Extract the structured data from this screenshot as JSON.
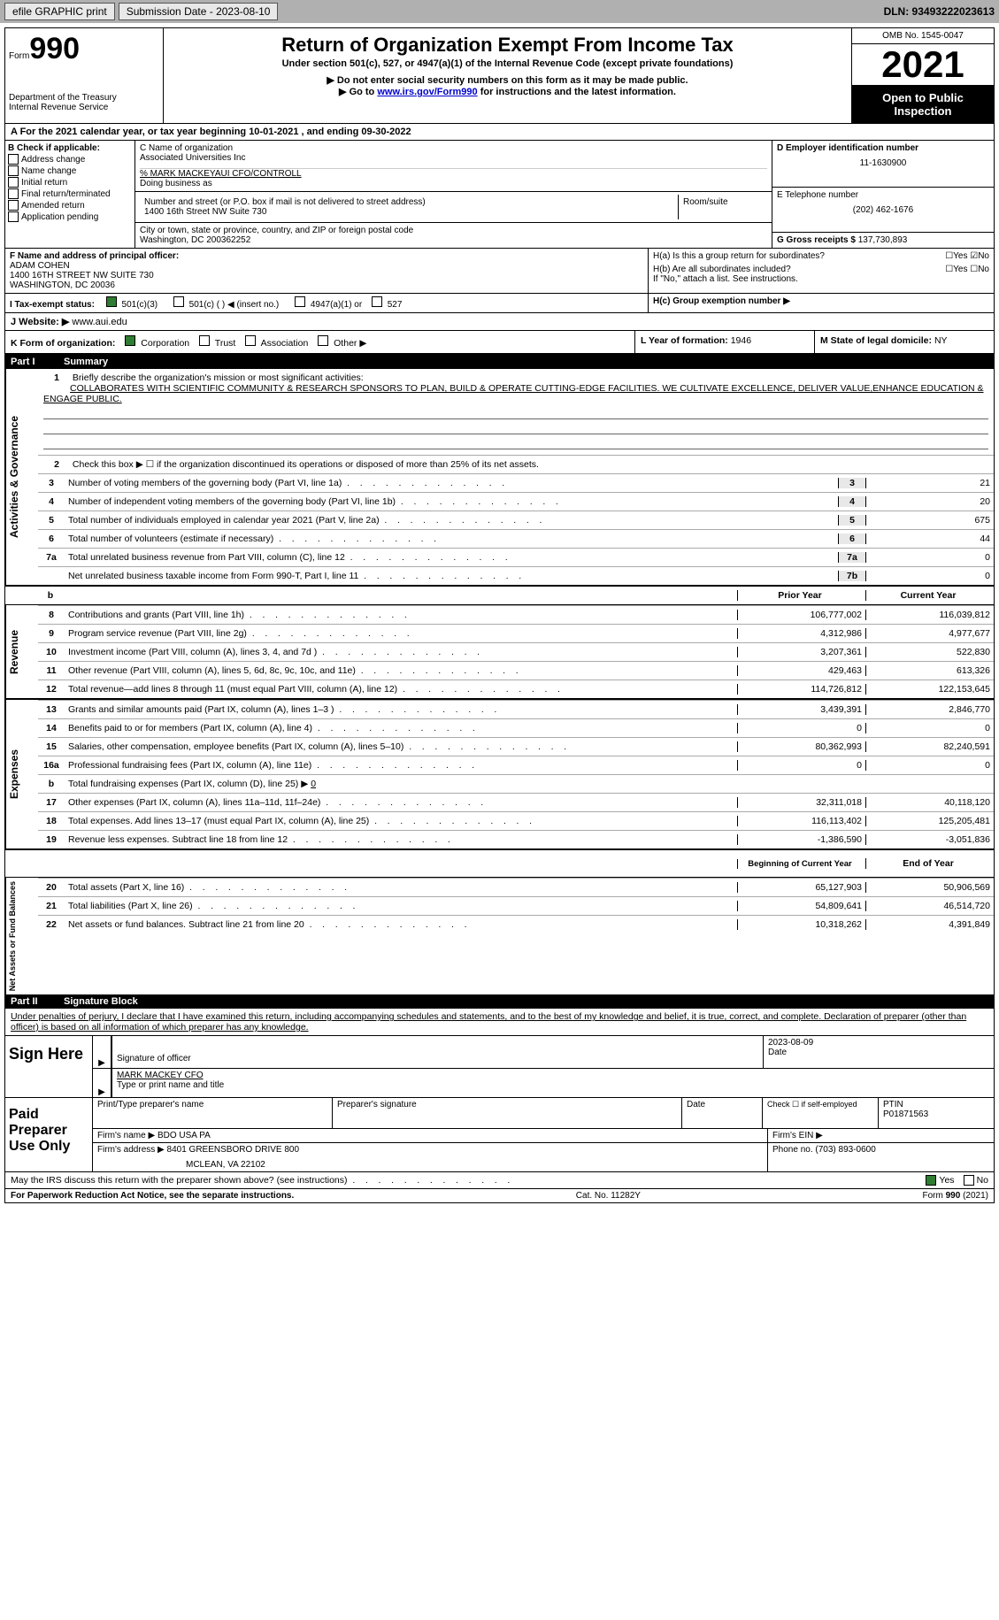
{
  "topbar": {
    "efile_label": "efile GRAPHIC print",
    "submission_date_label": "Submission Date - 2023-08-10",
    "dln_label": "DLN: 93493222023613"
  },
  "header": {
    "form_label": "Form",
    "form_number": "990",
    "dept": "Department of the Treasury\nInternal Revenue Service",
    "title": "Return of Organization Exempt From Income Tax",
    "subtitle": "Under section 501(c), 527, or 4947(a)(1) of the Internal Revenue Code (except private foundations)",
    "warning1": "▶ Do not enter social security numbers on this form as it may be made public.",
    "warning2_prefix": "▶ Go to ",
    "warning2_link": "www.irs.gov/Form990",
    "warning2_suffix": " for instructions and the latest information.",
    "omb": "OMB No. 1545-0047",
    "year": "2021",
    "public": "Open to Public Inspection"
  },
  "section_a": {
    "text": "A For the 2021 calendar year, or tax year beginning 10-01-2021   , and ending 09-30-2022"
  },
  "section_b": {
    "label": "B Check if applicable:",
    "options": [
      "Address change",
      "Name change",
      "Initial return",
      "Final return/terminated",
      "Amended return",
      "Application pending"
    ]
  },
  "section_c": {
    "name_label": "C Name of organization",
    "name": "Associated Universities Inc",
    "care_of": "% MARK MACKEYAUI CFO/CONTROLL",
    "dba_label": "Doing business as",
    "street_label": "Number and street (or P.O. box if mail is not delivered to street address)",
    "room_label": "Room/suite",
    "street": "1400 16th Street NW Suite 730",
    "city_label": "City or town, state or province, country, and ZIP or foreign postal code",
    "city": "Washington, DC  200362252"
  },
  "section_d": {
    "label": "D Employer identification number",
    "value": "11-1630900"
  },
  "section_e": {
    "label": "E Telephone number",
    "value": "(202) 462-1676"
  },
  "section_g": {
    "label": "G Gross receipts $",
    "value": "137,730,893"
  },
  "section_f": {
    "label": "F Name and address of principal officer:",
    "name": "ADAM COHEN",
    "addr1": "1400 16TH STREET NW SUITE 730",
    "addr2": "WASHINGTON, DC   20036"
  },
  "section_h": {
    "ha_label": "H(a)  Is this a group return for subordinates?",
    "hb_label": "H(b)  Are all subordinates included?",
    "hb_note": "If \"No,\" attach a list. See instructions.",
    "hc_label": "H(c)  Group exemption number ▶"
  },
  "section_i": {
    "label": "I  Tax-exempt status:",
    "opt1": "501(c)(3)",
    "opt2": "501(c) (   ) ◀ (insert no.)",
    "opt3": "4947(a)(1) or",
    "opt4": "527"
  },
  "section_j": {
    "label": "J  Website: ▶",
    "value": "www.aui.edu"
  },
  "section_k": {
    "label": "K Form of organization:",
    "opts": [
      "Corporation",
      "Trust",
      "Association",
      "Other ▶"
    ]
  },
  "section_l": {
    "label": "L Year of formation:",
    "value": "1946"
  },
  "section_m": {
    "label": "M State of legal domicile:",
    "value": "NY"
  },
  "part1": {
    "label": "Part I",
    "title": "Summary",
    "side1": "Activities & Governance",
    "side2": "Revenue",
    "side3": "Expenses",
    "side4": "Net Assets or Fund Balances",
    "line1_label": "Briefly describe the organization's mission or most significant activities:",
    "line1_text": "COLLABORATES WITH SCIENTIFIC COMMUNITY & RESEARCH SPONSORS TO PLAN, BUILD & OPERATE CUTTING-EDGE FACILITIES. WE CULTIVATE EXCELLENCE, DELIVER VALUE,ENHANCE EDUCATION & ENGAGE PUBLIC.",
    "line2_label": "Check this box ▶ ☐  if the organization discontinued its operations or disposed of more than 25% of its net assets.",
    "lines_gov": [
      {
        "num": "3",
        "text": "Number of voting members of the governing body (Part VI, line 1a)",
        "box": "3",
        "val": "21"
      },
      {
        "num": "4",
        "text": "Number of independent voting members of the governing body (Part VI, line 1b)",
        "box": "4",
        "val": "20"
      },
      {
        "num": "5",
        "text": "Total number of individuals employed in calendar year 2021 (Part V, line 2a)",
        "box": "5",
        "val": "675"
      },
      {
        "num": "6",
        "text": "Total number of volunteers (estimate if necessary)",
        "box": "6",
        "val": "44"
      },
      {
        "num": "7a",
        "text": "Total unrelated business revenue from Part VIII, column (C), line 12",
        "box": "7a",
        "val": "0"
      },
      {
        "num": "",
        "text": "Net unrelated business taxable income from Form 990-T, Part I, line 11",
        "box": "7b",
        "val": "0"
      }
    ],
    "col_prior": "Prior Year",
    "col_current": "Current Year",
    "lines_rev": [
      {
        "num": "8",
        "text": "Contributions and grants (Part VIII, line 1h)",
        "prior": "106,777,002",
        "curr": "116,039,812"
      },
      {
        "num": "9",
        "text": "Program service revenue (Part VIII, line 2g)",
        "prior": "4,312,986",
        "curr": "4,977,677"
      },
      {
        "num": "10",
        "text": "Investment income (Part VIII, column (A), lines 3, 4, and 7d )",
        "prior": "3,207,361",
        "curr": "522,830"
      },
      {
        "num": "11",
        "text": "Other revenue (Part VIII, column (A), lines 5, 6d, 8c, 9c, 10c, and 11e)",
        "prior": "429,463",
        "curr": "613,326"
      },
      {
        "num": "12",
        "text": "Total revenue—add lines 8 through 11 (must equal Part VIII, column (A), line 12)",
        "prior": "114,726,812",
        "curr": "122,153,645"
      }
    ],
    "lines_exp": [
      {
        "num": "13",
        "text": "Grants and similar amounts paid (Part IX, column (A), lines 1–3 )",
        "prior": "3,439,391",
        "curr": "2,846,770"
      },
      {
        "num": "14",
        "text": "Benefits paid to or for members (Part IX, column (A), line 4)",
        "prior": "0",
        "curr": "0"
      },
      {
        "num": "15",
        "text": "Salaries, other compensation, employee benefits (Part IX, column (A), lines 5–10)",
        "prior": "80,362,993",
        "curr": "82,240,591"
      },
      {
        "num": "16a",
        "text": "Professional fundraising fees (Part IX, column (A), line 11e)",
        "prior": "0",
        "curr": "0"
      }
    ],
    "line16b": "Total fundraising expenses (Part IX, column (D), line 25) ▶",
    "line16b_val": "0",
    "lines_exp2": [
      {
        "num": "17",
        "text": "Other expenses (Part IX, column (A), lines 11a–11d, 11f–24e)",
        "prior": "32,311,018",
        "curr": "40,118,120"
      },
      {
        "num": "18",
        "text": "Total expenses. Add lines 13–17 (must equal Part IX, column (A), line 25)",
        "prior": "116,113,402",
        "curr": "125,205,481"
      },
      {
        "num": "19",
        "text": "Revenue less expenses. Subtract line 18 from line 12",
        "prior": "-1,386,590",
        "curr": "-3,051,836"
      }
    ],
    "col_begin": "Beginning of Current Year",
    "col_end": "End of Year",
    "lines_net": [
      {
        "num": "20",
        "text": "Total assets (Part X, line 16)",
        "prior": "65,127,903",
        "curr": "50,906,569"
      },
      {
        "num": "21",
        "text": "Total liabilities (Part X, line 26)",
        "prior": "54,809,641",
        "curr": "46,514,720"
      },
      {
        "num": "22",
        "text": "Net assets or fund balances. Subtract line 21 from line 20",
        "prior": "10,318,262",
        "curr": "4,391,849"
      }
    ]
  },
  "part2": {
    "label": "Part II",
    "title": "Signature Block",
    "declaration": "Under penalties of perjury, I declare that I have examined this return, including accompanying schedules and statements, and to the best of my knowledge and belief, it is true, correct, and complete. Declaration of preparer (other than officer) is based on all information of which preparer has any knowledge.",
    "sign_here": "Sign Here",
    "sig_officer": "Signature of officer",
    "sig_date": "2023-08-09",
    "date_label": "Date",
    "officer_name": "MARK MACKEY CFO",
    "type_name": "Type or print name and title",
    "paid_prep": "Paid Preparer Use Only",
    "print_name_label": "Print/Type preparer's name",
    "prep_sig_label": "Preparer's signature",
    "check_self": "Check ☐ if self-employed",
    "ptin_label": "PTIN",
    "ptin": "P01871563",
    "firm_name_label": "Firm's name    ▶",
    "firm_name": "BDO USA PA",
    "firm_ein_label": "Firm's EIN ▶",
    "firm_addr_label": "Firm's address ▶",
    "firm_addr": "8401 GREENSBORO DRIVE 800",
    "firm_city": "MCLEAN, VA   22102",
    "phone_label": "Phone no.",
    "phone": "(703) 893-0600"
  },
  "discuss": {
    "text": "May the IRS discuss this return with the preparer shown above? (see instructions)",
    "yes": "Yes",
    "no": "No"
  },
  "footer": {
    "paperwork": "For Paperwork Reduction Act Notice, see the separate instructions.",
    "cat": "Cat. No. 11282Y",
    "form": "Form 990 (2021)"
  }
}
